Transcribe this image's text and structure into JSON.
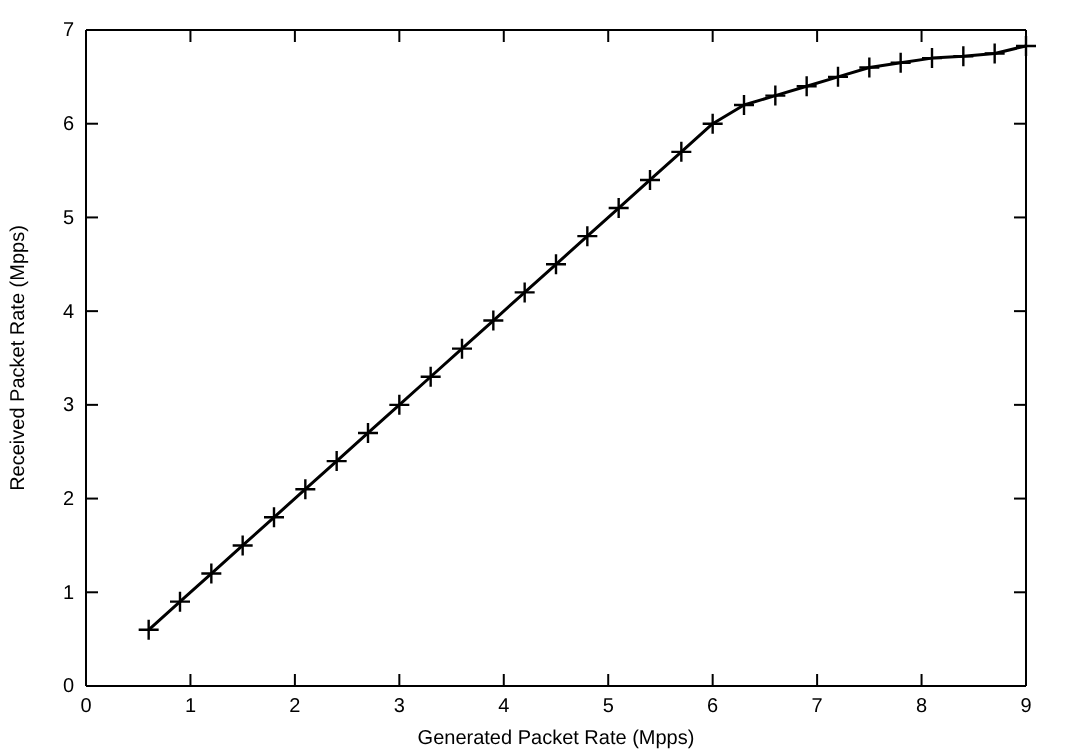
{
  "chart_data": {
    "type": "line",
    "xlabel": "Generated Packet Rate (Mpps)",
    "ylabel": "Received Packet Rate (Mpps)",
    "x": [
      0.6,
      0.9,
      1.2,
      1.5,
      1.8,
      2.1,
      2.4,
      2.7,
      3.0,
      3.3,
      3.6,
      3.9,
      4.2,
      4.5,
      4.8,
      5.1,
      5.4,
      5.7,
      6.0,
      6.3,
      6.6,
      6.9,
      7.2,
      7.5,
      7.8,
      8.1,
      8.4,
      8.7,
      9.0
    ],
    "series": [
      {
        "color": "#000000",
        "values": [
          0.6,
          0.9,
          1.2,
          1.5,
          1.8,
          2.1,
          2.4,
          2.7,
          3.0,
          3.3,
          3.6,
          3.9,
          4.2,
          4.5,
          4.8,
          5.1,
          5.4,
          5.7,
          6.0,
          6.2,
          6.3,
          6.4,
          6.5,
          6.6,
          6.65,
          6.7,
          6.72,
          6.75,
          6.83
        ]
      }
    ],
    "xlim": [
      0,
      9
    ],
    "xticks": [
      0,
      1,
      2,
      3,
      4,
      5,
      6,
      7,
      8,
      9
    ],
    "ylim": [
      0,
      7
    ],
    "yticks": [
      0,
      1,
      2,
      3,
      4,
      5,
      6,
      7
    ],
    "marker": "cross",
    "line_style": "solid"
  }
}
